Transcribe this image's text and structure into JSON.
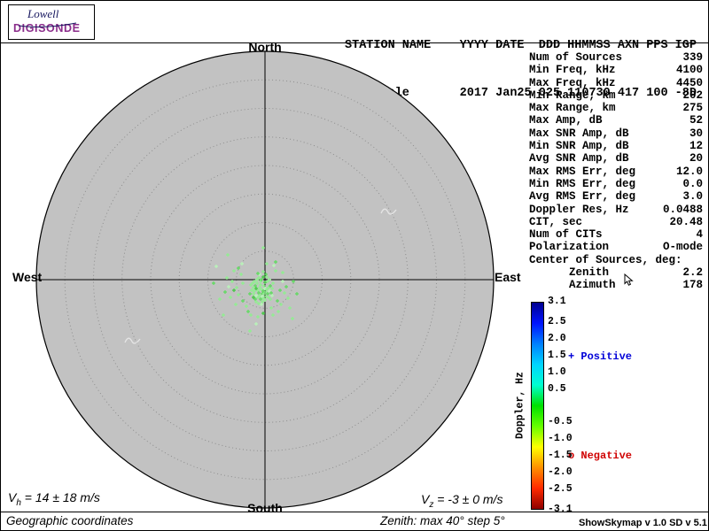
{
  "logo": {
    "line1": "Lowell",
    "line2": "DIGISONDE"
  },
  "header": {
    "labels_line": "STATION NAME    YYYY DATE  DDD HHMMSS AXN PPS IGP",
    "values_line": "Louisvale       2017 Jan25 025 110730 417 100 -8D",
    "station_name": "Louisvale",
    "year": "2017",
    "date": "Jan25",
    "ddd": "025",
    "hhmmss": "110730",
    "axn": "417",
    "pps": "100",
    "igp": "-8D"
  },
  "compass": {
    "north": "North",
    "south": "South",
    "east": "East",
    "west": "West"
  },
  "stats": {
    "rows": [
      {
        "label": "Num of Sources",
        "value": "339"
      },
      {
        "label": "Min Freq, kHz",
        "value": "4100"
      },
      {
        "label": "Max Freq, kHz",
        "value": "4450"
      },
      {
        "label": "Min Range, km",
        "value": "202"
      },
      {
        "label": "Max Range, km",
        "value": "275"
      },
      {
        "label": "Max Amp, dB",
        "value": "52"
      },
      {
        "label": "Max SNR Amp, dB",
        "value": "30"
      },
      {
        "label": "Min SNR Amp, dB",
        "value": "12"
      },
      {
        "label": "Avg SNR Amp, dB",
        "value": "20"
      },
      {
        "label": "Max RMS Err, deg",
        "value": "12.0"
      },
      {
        "label": "Min RMS Err, deg",
        "value": "0.0"
      },
      {
        "label": "Avg RMS Err, deg",
        "value": "3.0"
      },
      {
        "label": "Doppler Res, Hz",
        "value": "0.0488"
      },
      {
        "label": "CIT, sec",
        "value": "20.48"
      },
      {
        "label": "Num of CITs",
        "value": "4"
      },
      {
        "label": "Polarization",
        "value": "O-mode"
      },
      {
        "label": "Center of Sources, deg:",
        "value": ""
      },
      {
        "label": "      Zenith",
        "value": "2.2"
      },
      {
        "label": "      Azimuth",
        "value": "178"
      }
    ]
  },
  "colorbar": {
    "axis_label": "Doppler, Hz",
    "max": 3.1,
    "min": -3.1,
    "ticks": [
      {
        "label": "3.1",
        "value": 3.1
      },
      {
        "label": "2.5",
        "value": 2.5
      },
      {
        "label": "2.0",
        "value": 2.0
      },
      {
        "label": "1.5",
        "value": 1.5
      },
      {
        "label": "1.0",
        "value": 1.0
      },
      {
        "label": "0.5",
        "value": 0.5
      },
      {
        "label": "-0.5",
        "value": -0.5
      },
      {
        "label": "-1.0",
        "value": -1.0
      },
      {
        "label": "-1.5",
        "value": -1.5
      },
      {
        "label": "-2.0",
        "value": -2.0
      },
      {
        "label": "-2.5",
        "value": -2.5
      },
      {
        "label": "-3.1",
        "value": -3.1
      }
    ],
    "gradient": [
      "#00008f",
      "#0013ff",
      "#0080ff",
      "#00d4ff",
      "#00ffd0",
      "#00e000",
      "#66ff00",
      "#ffff00",
      "#ff9000",
      "#ff2a00",
      "#8f0000"
    ],
    "positive_label": "+ Positive",
    "negative_label": "o Negative",
    "positive_color": "#0000d8",
    "negative_color": "#d00000"
  },
  "footer": {
    "vh_base": "V",
    "vh_sub": "h",
    "vh_rest": " = 14 ± 18 m/s",
    "vz_base": "V",
    "vz_sub": "z",
    "vz_rest": " = -3 ± 0 m/s",
    "coords_label": "Geographic coordinates",
    "zenith_note": "Zenith: max 40°  step 5°",
    "version_label": "ShowSkymap v 1.0  SD v 5.1"
  },
  "skymap": {
    "rings": 8,
    "max_zenith_deg": 40,
    "step_deg": 5,
    "point_colors": [
      "#8ff08f",
      "#5ddb5d",
      "#b8f7b8",
      "#3fc93f"
    ],
    "points": [
      [
        294,
        278,
        0
      ],
      [
        296,
        280,
        1
      ],
      [
        292,
        276,
        0
      ],
      [
        298,
        277,
        2
      ],
      [
        290,
        279,
        0
      ],
      [
        295,
        283,
        1
      ],
      [
        293,
        273,
        0
      ],
      [
        299,
        281,
        0
      ],
      [
        288,
        277,
        3
      ],
      [
        297,
        274,
        0
      ],
      [
        291,
        282,
        1
      ],
      [
        300,
        278,
        0
      ],
      [
        286,
        280,
        0
      ],
      [
        295,
        286,
        2
      ],
      [
        293,
        269,
        0
      ],
      [
        301,
        283,
        1
      ],
      [
        289,
        271,
        0
      ],
      [
        296,
        288,
        0
      ],
      [
        287,
        274,
        1
      ],
      [
        302,
        276,
        0
      ],
      [
        292,
        285,
        0
      ],
      [
        298,
        270,
        3
      ],
      [
        285,
        283,
        0
      ],
      [
        303,
        280,
        2
      ],
      [
        290,
        287,
        0
      ],
      [
        294,
        267,
        1
      ],
      [
        299,
        286,
        0
      ],
      [
        286,
        269,
        0
      ],
      [
        304,
        274,
        1
      ],
      [
        291,
        265,
        0
      ],
      [
        297,
        283,
        0
      ],
      [
        288,
        285,
        2
      ],
      [
        301,
        269,
        0
      ],
      [
        293,
        289,
        1
      ],
      [
        285,
        276,
        0
      ],
      [
        302,
        287,
        0
      ],
      [
        296,
        264,
        3
      ],
      [
        289,
        267,
        0
      ],
      [
        305,
        282,
        1
      ],
      [
        284,
        271,
        0
      ],
      [
        298,
        290,
        0
      ],
      [
        292,
        261,
        2
      ],
      [
        300,
        264,
        0
      ],
      [
        287,
        289,
        1
      ],
      [
        306,
        277,
        0
      ],
      [
        283,
        279,
        0
      ],
      [
        295,
        292,
        0
      ],
      [
        290,
        260,
        1
      ],
      [
        303,
        267,
        0
      ],
      [
        285,
        287,
        3
      ],
      [
        307,
        271,
        0
      ],
      [
        294,
        295,
        2
      ],
      [
        282,
        273,
        0
      ],
      [
        299,
        261,
        1
      ],
      [
        288,
        292,
        0
      ],
      [
        304,
        289,
        0
      ],
      [
        281,
        283,
        1
      ],
      [
        296,
        258,
        0
      ],
      [
        291,
        294,
        0
      ],
      [
        306,
        285,
        2
      ],
      [
        273,
        271,
        0
      ],
      [
        315,
        279,
        1
      ],
      [
        268,
        284,
        0
      ],
      [
        318,
        269,
        2
      ],
      [
        266,
        276,
        0
      ],
      [
        312,
        291,
        1
      ],
      [
        271,
        261,
        0
      ],
      [
        320,
        282,
        0
      ],
      [
        263,
        279,
        3
      ],
      [
        310,
        257,
        0
      ],
      [
        273,
        291,
        1
      ],
      [
        316,
        295,
        0
      ],
      [
        261,
        269,
        0
      ],
      [
        308,
        251,
        2
      ],
      [
        277,
        297,
        0
      ],
      [
        322,
        275,
        1
      ],
      [
        259,
        287,
        0
      ],
      [
        305,
        299,
        0
      ],
      [
        268,
        254,
        1
      ],
      [
        313,
        303,
        0
      ],
      [
        257,
        275,
        2
      ],
      [
        300,
        249,
        0
      ],
      [
        279,
        303,
        1
      ],
      [
        324,
        288,
        0
      ],
      [
        265,
        295,
        0
      ],
      [
        296,
        305,
        3
      ],
      [
        255,
        265,
        0
      ],
      [
        310,
        247,
        1
      ],
      [
        282,
        307,
        0
      ],
      [
        318,
        259,
        0
      ],
      [
        272,
        249,
        2
      ],
      [
        290,
        309,
        0
      ],
      [
        253,
        281,
        1
      ],
      [
        307,
        307,
        0
      ],
      [
        263,
        257,
        0
      ],
      [
        256,
        239,
        0
      ],
      [
        330,
        269,
        1
      ],
      [
        247,
        289,
        0
      ],
      [
        288,
        317,
        2
      ],
      [
        326,
        299,
        0
      ],
      [
        240,
        271,
        1
      ],
      [
        296,
        231,
        0
      ],
      [
        251,
        307,
        0
      ],
      [
        334,
        283,
        1
      ],
      [
        281,
        325,
        0
      ],
      [
        243,
        252,
        2
      ],
      [
        329,
        311,
        0
      ]
    ],
    "artifacts": [
      [
        437,
        189
      ],
      [
        148,
        335
      ]
    ]
  }
}
